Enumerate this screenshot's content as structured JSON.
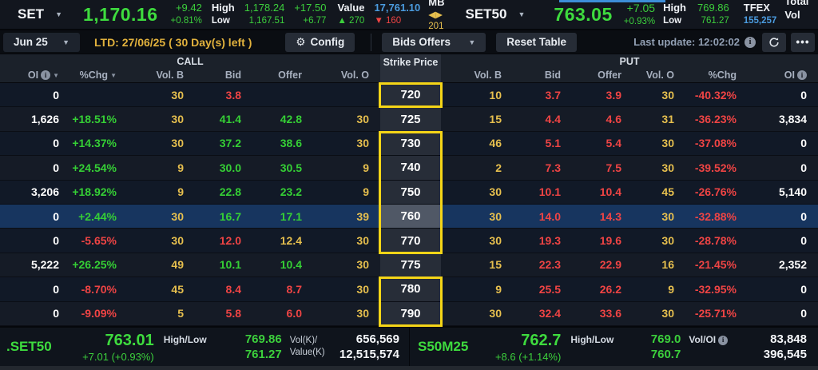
{
  "colors": {
    "up": "#35cf35",
    "down": "#ef4444",
    "vol": "#e6bf4e",
    "blue": "#4b9ce0",
    "amber": "#e2b23d",
    "yellow_box": "#f5d517",
    "row_highlight": "#17355f"
  },
  "top_bar": {
    "set": {
      "symbol": "SET",
      "last": "1,170.16",
      "chg": "+9.42",
      "chg_pct": "+0.81%",
      "high_label": "High",
      "low_label": "Low",
      "high": "1,178.24",
      "low": "1,167.51",
      "high_chg": "+17.50",
      "low_chg": "+6.77",
      "value_label": "Value",
      "value": "17,761.10",
      "value_unit": "MB",
      "advances": "▲ 270",
      "declines": "▼ 160",
      "unchanged": "◀▶ 201"
    },
    "set50": {
      "symbol": "SET50",
      "last": "763.05",
      "chg": "+7.05",
      "chg_pct": "+0.93%",
      "high_label": "High",
      "low_label": "Low",
      "high": "769.86",
      "low": "761.27",
      "tfex_label": "TFEX",
      "total_vol_label": "Total Vol",
      "total_vol": "155,257",
      "clipped_label_1": "Tot",
      "clipped_label_2": "Tot"
    }
  },
  "toolbar": {
    "series": "Jun 25",
    "ltd": "LTD: 27/06/25 ( 30 Day(s) left )",
    "config_label": "Config",
    "bids_offers_label": "Bids Offers",
    "reset_label": "Reset Table",
    "last_update": "Last update: 12:02:02"
  },
  "table": {
    "call_label": "CALL",
    "put_label": "PUT",
    "strike_label": "Strike Price",
    "call_headers": {
      "oi": "OI",
      "chg": "%Chg",
      "vol_b": "Vol. B",
      "bid": "Bid",
      "offer": "Offer",
      "vol_o": "Vol. O"
    },
    "put_headers": {
      "vol_b": "Vol. B",
      "bid": "Bid",
      "offer": "Offer",
      "vol_o": "Vol. O",
      "chg": "%Chg",
      "oi": "OI"
    },
    "highlight_groups": [
      {
        "start": 0,
        "count": 1
      },
      {
        "start": 2,
        "count": 5
      },
      {
        "start": 8,
        "count": 2
      }
    ],
    "rows": [
      {
        "strike": "720",
        "highlight": false,
        "call": [
          {
            "v": "0",
            "c": "oi"
          },
          {
            "v": "",
            "c": ""
          },
          {
            "v": "30",
            "c": "vol"
          },
          {
            "v": "3.8",
            "c": "down"
          },
          {
            "v": "",
            "c": ""
          },
          {
            "v": "",
            "c": ""
          }
        ],
        "put": [
          {
            "v": "10",
            "c": "vol"
          },
          {
            "v": "3.7",
            "c": "down"
          },
          {
            "v": "3.9",
            "c": "down"
          },
          {
            "v": "30",
            "c": "vol"
          },
          {
            "v": "-40.32%",
            "c": "down"
          },
          {
            "v": "0",
            "c": "oi"
          }
        ]
      },
      {
        "strike": "725",
        "highlight": false,
        "call": [
          {
            "v": "1,626",
            "c": "oi"
          },
          {
            "v": "+18.51%",
            "c": "up"
          },
          {
            "v": "30",
            "c": "vol"
          },
          {
            "v": "41.4",
            "c": "up"
          },
          {
            "v": "42.8",
            "c": "up"
          },
          {
            "v": "30",
            "c": "vol"
          }
        ],
        "put": [
          {
            "v": "15",
            "c": "vol"
          },
          {
            "v": "4.4",
            "c": "down"
          },
          {
            "v": "4.6",
            "c": "down"
          },
          {
            "v": "31",
            "c": "vol"
          },
          {
            "v": "-36.23%",
            "c": "down"
          },
          {
            "v": "3,834",
            "c": "oi"
          }
        ]
      },
      {
        "strike": "730",
        "highlight": false,
        "call": [
          {
            "v": "0",
            "c": "oi"
          },
          {
            "v": "+14.37%",
            "c": "up"
          },
          {
            "v": "30",
            "c": "vol"
          },
          {
            "v": "37.2",
            "c": "up"
          },
          {
            "v": "38.6",
            "c": "up"
          },
          {
            "v": "30",
            "c": "vol"
          }
        ],
        "put": [
          {
            "v": "46",
            "c": "vol"
          },
          {
            "v": "5.1",
            "c": "down"
          },
          {
            "v": "5.4",
            "c": "down"
          },
          {
            "v": "30",
            "c": "vol"
          },
          {
            "v": "-37.08%",
            "c": "down"
          },
          {
            "v": "0",
            "c": "oi"
          }
        ]
      },
      {
        "strike": "740",
        "highlight": false,
        "call": [
          {
            "v": "0",
            "c": "oi"
          },
          {
            "v": "+24.54%",
            "c": "up"
          },
          {
            "v": "9",
            "c": "vol"
          },
          {
            "v": "30.0",
            "c": "up"
          },
          {
            "v": "30.5",
            "c": "up"
          },
          {
            "v": "9",
            "c": "vol"
          }
        ],
        "put": [
          {
            "v": "2",
            "c": "vol"
          },
          {
            "v": "7.3",
            "c": "down"
          },
          {
            "v": "7.5",
            "c": "down"
          },
          {
            "v": "30",
            "c": "vol"
          },
          {
            "v": "-39.52%",
            "c": "down"
          },
          {
            "v": "0",
            "c": "oi"
          }
        ]
      },
      {
        "strike": "750",
        "highlight": false,
        "call": [
          {
            "v": "3,206",
            "c": "oi"
          },
          {
            "v": "+18.92%",
            "c": "up"
          },
          {
            "v": "9",
            "c": "vol"
          },
          {
            "v": "22.8",
            "c": "up"
          },
          {
            "v": "23.2",
            "c": "up"
          },
          {
            "v": "9",
            "c": "vol"
          }
        ],
        "put": [
          {
            "v": "30",
            "c": "vol"
          },
          {
            "v": "10.1",
            "c": "down"
          },
          {
            "v": "10.4",
            "c": "down"
          },
          {
            "v": "45",
            "c": "vol"
          },
          {
            "v": "-26.76%",
            "c": "down"
          },
          {
            "v": "5,140",
            "c": "oi"
          }
        ]
      },
      {
        "strike": "760",
        "highlight": true,
        "call": [
          {
            "v": "0",
            "c": "oi"
          },
          {
            "v": "+2.44%",
            "c": "up"
          },
          {
            "v": "30",
            "c": "vol"
          },
          {
            "v": "16.7",
            "c": "up"
          },
          {
            "v": "17.1",
            "c": "up"
          },
          {
            "v": "39",
            "c": "vol"
          }
        ],
        "put": [
          {
            "v": "30",
            "c": "vol"
          },
          {
            "v": "14.0",
            "c": "down"
          },
          {
            "v": "14.3",
            "c": "down"
          },
          {
            "v": "30",
            "c": "vol"
          },
          {
            "v": "-32.88%",
            "c": "down"
          },
          {
            "v": "0",
            "c": "oi"
          }
        ]
      },
      {
        "strike": "770",
        "highlight": false,
        "call": [
          {
            "v": "0",
            "c": "oi"
          },
          {
            "v": "-5.65%",
            "c": "down"
          },
          {
            "v": "30",
            "c": "vol"
          },
          {
            "v": "12.0",
            "c": "down"
          },
          {
            "v": "12.4",
            "c": "flat"
          },
          {
            "v": "30",
            "c": "vol"
          }
        ],
        "put": [
          {
            "v": "30",
            "c": "vol"
          },
          {
            "v": "19.3",
            "c": "down"
          },
          {
            "v": "19.6",
            "c": "down"
          },
          {
            "v": "30",
            "c": "vol"
          },
          {
            "v": "-28.78%",
            "c": "down"
          },
          {
            "v": "0",
            "c": "oi"
          }
        ]
      },
      {
        "strike": "775",
        "highlight": false,
        "call": [
          {
            "v": "5,222",
            "c": "oi"
          },
          {
            "v": "+26.25%",
            "c": "up"
          },
          {
            "v": "49",
            "c": "vol"
          },
          {
            "v": "10.1",
            "c": "up"
          },
          {
            "v": "10.4",
            "c": "up"
          },
          {
            "v": "30",
            "c": "vol"
          }
        ],
        "put": [
          {
            "v": "15",
            "c": "vol"
          },
          {
            "v": "22.3",
            "c": "down"
          },
          {
            "v": "22.9",
            "c": "down"
          },
          {
            "v": "16",
            "c": "vol"
          },
          {
            "v": "-21.45%",
            "c": "down"
          },
          {
            "v": "2,352",
            "c": "oi"
          }
        ]
      },
      {
        "strike": "780",
        "highlight": false,
        "call": [
          {
            "v": "0",
            "c": "oi"
          },
          {
            "v": "-8.70%",
            "c": "down"
          },
          {
            "v": "45",
            "c": "vol"
          },
          {
            "v": "8.4",
            "c": "down"
          },
          {
            "v": "8.7",
            "c": "down"
          },
          {
            "v": "30",
            "c": "vol"
          }
        ],
        "put": [
          {
            "v": "9",
            "c": "vol"
          },
          {
            "v": "25.5",
            "c": "down"
          },
          {
            "v": "26.2",
            "c": "down"
          },
          {
            "v": "9",
            "c": "vol"
          },
          {
            "v": "-32.95%",
            "c": "down"
          },
          {
            "v": "0",
            "c": "oi"
          }
        ]
      },
      {
        "strike": "790",
        "highlight": false,
        "call": [
          {
            "v": "0",
            "c": "oi"
          },
          {
            "v": "-9.09%",
            "c": "down"
          },
          {
            "v": "5",
            "c": "vol"
          },
          {
            "v": "5.8",
            "c": "down"
          },
          {
            "v": "6.0",
            "c": "down"
          },
          {
            "v": "30",
            "c": "vol"
          }
        ],
        "put": [
          {
            "v": "30",
            "c": "vol"
          },
          {
            "v": "32.4",
            "c": "down"
          },
          {
            "v": "33.6",
            "c": "down"
          },
          {
            "v": "30",
            "c": "vol"
          },
          {
            "v": "-25.71%",
            "c": "down"
          },
          {
            "v": "0",
            "c": "oi"
          }
        ]
      }
    ]
  },
  "bottom_bar": {
    "left": {
      "symbol": ".SET50",
      "last": "763.01",
      "chg": "+7.01 (+0.93%)",
      "hl_label": "High/Low",
      "high": "769.86",
      "low": "761.27",
      "vol_label_1": "Vol(K)/",
      "vol_label_2": "Value(K)",
      "vol": "656,569",
      "value": "12,515,574"
    },
    "right": {
      "symbol": "S50M25",
      "last": "762.7",
      "chg": "+8.6 (+1.14%)",
      "hl_label": "High/Low",
      "high": "769.0",
      "low": "760.7",
      "vol_label": "Vol/OI",
      "vol": "83,848",
      "oi": "396,545"
    }
  }
}
